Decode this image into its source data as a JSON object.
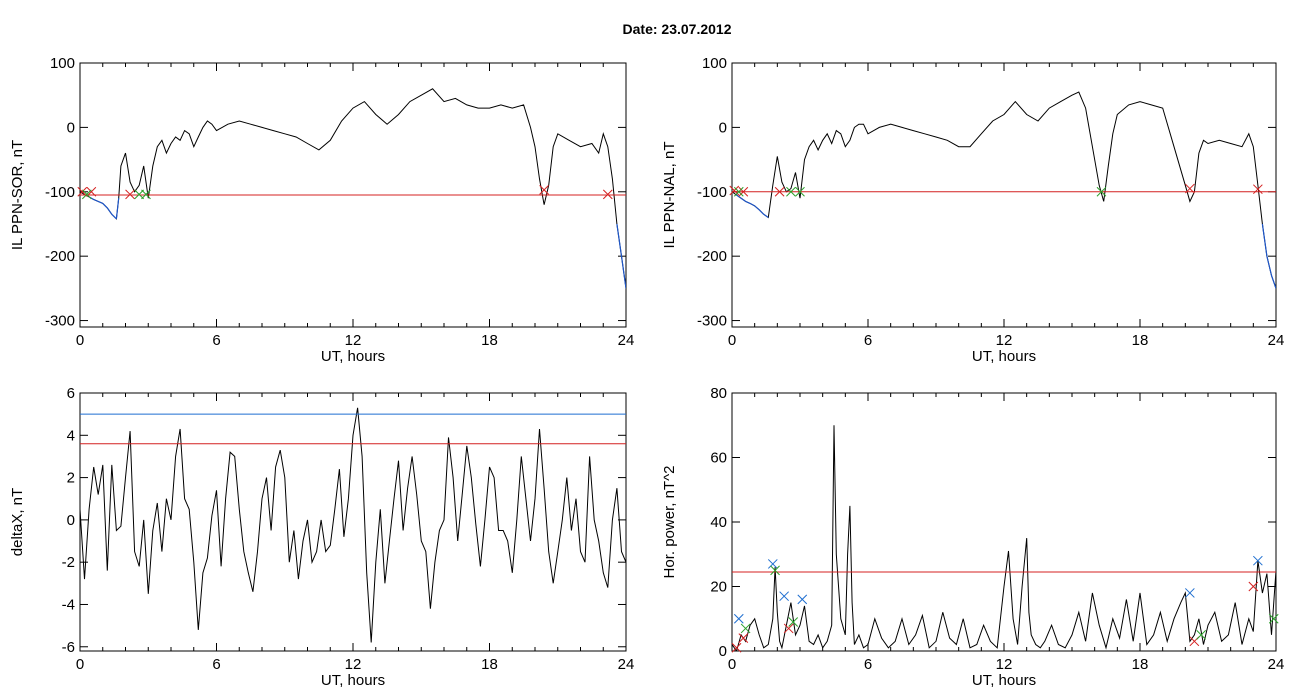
{
  "title": "Date:  23.07.2012",
  "colors": {
    "series": "#000000",
    "below": "#1e56c8",
    "threshold_red": "#d42020",
    "threshold_blue": "#1e6ed0",
    "marker_red": "#d42020",
    "marker_green": "#2aa02a",
    "marker_blue": "#1e6ed0"
  },
  "chart_data": [
    {
      "type": "line",
      "ylabel": "IL PPN-SOR, nT",
      "xlabel": "UT, hours",
      "xlim": [
        0,
        24
      ],
      "ylim": [
        -310,
        100
      ],
      "xticks": [
        0,
        6,
        12,
        18,
        24
      ],
      "yticks": [
        -300,
        -200,
        -100,
        0,
        100
      ],
      "threshold": -105,
      "series": [
        {
          "x": [
            0,
            0.2,
            0.4,
            0.6,
            0.8,
            1.0,
            1.2,
            1.4,
            1.6,
            1.7,
            1.8,
            2.0,
            2.2,
            2.4,
            2.6,
            2.8,
            3.0,
            3.2,
            3.4,
            3.6,
            3.8,
            4.0,
            4.2,
            4.4,
            4.6,
            4.8,
            5.0,
            5.2,
            5.4,
            5.6,
            5.8,
            6.0,
            6.5,
            7.0,
            7.5,
            8.0,
            8.5,
            9.0,
            9.5,
            10.0,
            10.5,
            11.0,
            11.5,
            12.0,
            12.5,
            13.0,
            13.5,
            14.0,
            14.5,
            15.0,
            15.5,
            16.0,
            16.5,
            17.0,
            17.5,
            18.0,
            18.5,
            19.0,
            19.5,
            19.8,
            20.0,
            20.2,
            20.4,
            20.6,
            20.8,
            21.0,
            21.5,
            22.0,
            22.5,
            22.8,
            23.0,
            23.2,
            23.4,
            23.6,
            23.8,
            24.0
          ],
          "y": [
            -100,
            -104,
            -108,
            -112,
            -115,
            -118,
            -125,
            -135,
            -142,
            -110,
            -60,
            -40,
            -85,
            -100,
            -90,
            -60,
            -110,
            -60,
            -30,
            -20,
            -40,
            -25,
            -15,
            -20,
            -5,
            -10,
            -30,
            -15,
            0,
            10,
            5,
            -5,
            5,
            10,
            5,
            0,
            -5,
            -10,
            -15,
            -25,
            -35,
            -20,
            10,
            30,
            40,
            20,
            5,
            20,
            40,
            50,
            60,
            40,
            45,
            35,
            30,
            30,
            35,
            30,
            35,
            0,
            -30,
            -80,
            -120,
            -90,
            -30,
            -10,
            -20,
            -30,
            -25,
            -40,
            -10,
            -30,
            -80,
            -150,
            -200,
            -250
          ]
        }
      ],
      "markers": [
        {
          "x": 0.1,
          "y": -100,
          "color": "red"
        },
        {
          "x": 0.5,
          "y": -100,
          "color": "red"
        },
        {
          "x": 0.3,
          "y": -104,
          "color": "green"
        },
        {
          "x": 2.2,
          "y": -104,
          "color": "red"
        },
        {
          "x": 2.6,
          "y": -104,
          "color": "green"
        },
        {
          "x": 2.9,
          "y": -104,
          "color": "green"
        },
        {
          "x": 20.4,
          "y": -97,
          "color": "red"
        },
        {
          "x": 23.2,
          "y": -104,
          "color": "red"
        }
      ]
    },
    {
      "type": "line",
      "ylabel": "IL PPN-NAL, nT",
      "xlabel": "UT, hours",
      "xlim": [
        0,
        24
      ],
      "ylim": [
        -310,
        100
      ],
      "xticks": [
        0,
        6,
        12,
        18,
        24
      ],
      "yticks": [
        -300,
        -200,
        -100,
        0,
        100
      ],
      "threshold": -100,
      "series": [
        {
          "x": [
            0,
            0.2,
            0.4,
            0.6,
            0.8,
            1.0,
            1.2,
            1.4,
            1.6,
            1.8,
            2.0,
            2.2,
            2.4,
            2.6,
            2.8,
            3.0,
            3.2,
            3.4,
            3.6,
            3.8,
            4.0,
            4.2,
            4.4,
            4.6,
            4.8,
            5.0,
            5.2,
            5.4,
            5.6,
            5.8,
            6.0,
            6.5,
            7.0,
            7.5,
            8.0,
            8.5,
            9.0,
            9.5,
            10.0,
            10.5,
            11.0,
            11.5,
            12.0,
            12.5,
            13.0,
            13.5,
            14.0,
            14.5,
            15.0,
            15.3,
            15.6,
            15.9,
            16.2,
            16.4,
            16.6,
            16.8,
            17.0,
            17.5,
            18.0,
            18.5,
            19.0,
            19.5,
            20.0,
            20.2,
            20.4,
            20.6,
            20.8,
            21.0,
            21.5,
            22.0,
            22.5,
            22.8,
            23.0,
            23.2,
            23.4,
            23.6,
            23.8,
            24.0
          ],
          "y": [
            -100,
            -105,
            -110,
            -115,
            -118,
            -122,
            -128,
            -135,
            -140,
            -90,
            -45,
            -85,
            -100,
            -95,
            -70,
            -110,
            -50,
            -30,
            -20,
            -35,
            -20,
            -10,
            -25,
            -5,
            -10,
            -30,
            -20,
            0,
            5,
            5,
            -10,
            0,
            5,
            0,
            -5,
            -10,
            -15,
            -20,
            -30,
            -30,
            -10,
            10,
            20,
            40,
            20,
            10,
            30,
            40,
            50,
            55,
            30,
            -30,
            -90,
            -115,
            -60,
            -10,
            20,
            35,
            40,
            35,
            30,
            -30,
            -90,
            -115,
            -100,
            -40,
            -20,
            -25,
            -20,
            -25,
            -30,
            -10,
            -30,
            -90,
            -150,
            -200,
            -230,
            -250
          ]
        }
      ],
      "markers": [
        {
          "x": 0.1,
          "y": -98,
          "color": "red"
        },
        {
          "x": 0.5,
          "y": -100,
          "color": "red"
        },
        {
          "x": 0.3,
          "y": -100,
          "color": "green"
        },
        {
          "x": 2.1,
          "y": -100,
          "color": "red"
        },
        {
          "x": 2.6,
          "y": -100,
          "color": "green"
        },
        {
          "x": 3.0,
          "y": -100,
          "color": "green"
        },
        {
          "x": 16.3,
          "y": -100,
          "color": "green"
        },
        {
          "x": 20.2,
          "y": -95,
          "color": "red"
        },
        {
          "x": 23.2,
          "y": -96,
          "color": "red"
        }
      ]
    },
    {
      "type": "line",
      "ylabel": "deltaX, nT",
      "xlabel": "UT, hours",
      "xlim": [
        0,
        24
      ],
      "ylim": [
        -6.2,
        6
      ],
      "xticks": [
        0,
        6,
        12,
        18,
        24
      ],
      "yticks": [
        -6,
        -4,
        -2,
        0,
        2,
        4,
        6
      ],
      "thresholds": [
        {
          "value": 5.0,
          "color": "blue"
        },
        {
          "value": 3.6,
          "color": "red"
        }
      ],
      "series": [
        {
          "x": [
            0,
            0.2,
            0.4,
            0.6,
            0.8,
            1.0,
            1.2,
            1.4,
            1.6,
            1.8,
            2.0,
            2.2,
            2.4,
            2.6,
            2.8,
            3.0,
            3.2,
            3.4,
            3.6,
            3.8,
            4.0,
            4.2,
            4.4,
            4.6,
            4.8,
            5.0,
            5.2,
            5.4,
            5.6,
            5.8,
            6.0,
            6.2,
            6.4,
            6.6,
            6.8,
            7.0,
            7.2,
            7.4,
            7.6,
            7.8,
            8.0,
            8.2,
            8.4,
            8.6,
            8.8,
            9.0,
            9.2,
            9.4,
            9.6,
            9.8,
            10.0,
            10.2,
            10.4,
            10.6,
            10.8,
            11.0,
            11.2,
            11.4,
            11.6,
            11.8,
            12.0,
            12.2,
            12.4,
            12.6,
            12.8,
            13.0,
            13.2,
            13.4,
            13.6,
            13.8,
            14.0,
            14.2,
            14.4,
            14.6,
            14.8,
            15.0,
            15.2,
            15.4,
            15.6,
            15.8,
            16.0,
            16.2,
            16.4,
            16.6,
            16.8,
            17.0,
            17.2,
            17.4,
            17.6,
            17.8,
            18.0,
            18.2,
            18.4,
            18.6,
            18.8,
            19.0,
            19.2,
            19.4,
            19.6,
            19.8,
            20.0,
            20.2,
            20.4,
            20.6,
            20.8,
            21.0,
            21.2,
            21.4,
            21.6,
            21.8,
            22.0,
            22.2,
            22.4,
            22.6,
            22.8,
            23.0,
            23.2,
            23.4,
            23.6,
            23.8,
            24.0
          ],
          "y": [
            0.5,
            -2.8,
            0.5,
            2.5,
            1.2,
            2.6,
            -2.4,
            2.6,
            -0.5,
            -0.3,
            2.0,
            4.2,
            -1.5,
            -2.2,
            0.0,
            -3.5,
            -0.5,
            0.8,
            -1.5,
            1.0,
            0.0,
            3.0,
            4.3,
            1.0,
            0.5,
            -2.0,
            -5.2,
            -2.5,
            -1.8,
            0.2,
            1.4,
            -2.2,
            1.0,
            3.2,
            3.0,
            0.5,
            -1.5,
            -2.5,
            -3.4,
            -1.5,
            1.0,
            2.0,
            -0.5,
            2.5,
            3.3,
            2.0,
            -2.0,
            -0.5,
            -2.8,
            -1.0,
            0.0,
            -2.0,
            -1.5,
            0.0,
            -1.5,
            -1.2,
            0.5,
            2.4,
            -0.8,
            1.0,
            4.0,
            5.3,
            3.0,
            -2.5,
            -5.8,
            -2.0,
            0.5,
            -3.0,
            -1.0,
            1.0,
            2.8,
            -0.5,
            1.5,
            3.0,
            1.2,
            -1.0,
            -1.5,
            -4.2,
            -2.0,
            -0.5,
            0.0,
            3.9,
            2.0,
            -1.0,
            1.2,
            3.5,
            2.0,
            -0.2,
            -2.2,
            0.0,
            2.5,
            2.0,
            -0.5,
            -0.5,
            -1.0,
            -2.5,
            0.0,
            3.0,
            1.0,
            -1.0,
            1.0,
            4.3,
            1.5,
            -1.5,
            -3.0,
            -1.5,
            0.0,
            2.0,
            -0.5,
            1.0,
            -1.5,
            -2.0,
            3.0,
            0.0,
            -1.0,
            -2.5,
            -3.2,
            0.0,
            1.5,
            -1.5,
            -2.0
          ]
        }
      ]
    },
    {
      "type": "line",
      "ylabel": "Hor. power, nT^2",
      "xlabel": "UT, hours",
      "xlim": [
        0,
        24
      ],
      "ylim": [
        0,
        80
      ],
      "xticks": [
        0,
        6,
        12,
        18,
        24
      ],
      "yticks": [
        0,
        20,
        40,
        60,
        80
      ],
      "threshold": 24.5,
      "series": [
        {
          "x": [
            0,
            0.2,
            0.4,
            0.6,
            0.8,
            1.0,
            1.2,
            1.4,
            1.6,
            1.8,
            1.9,
            2.0,
            2.1,
            2.2,
            2.4,
            2.6,
            2.8,
            3.0,
            3.2,
            3.4,
            3.6,
            3.8,
            4.0,
            4.2,
            4.4,
            4.5,
            4.6,
            4.8,
            5.0,
            5.1,
            5.2,
            5.3,
            5.4,
            5.6,
            5.8,
            6.0,
            6.3,
            6.6,
            6.9,
            7.2,
            7.5,
            7.8,
            8.1,
            8.4,
            8.7,
            9.0,
            9.3,
            9.6,
            9.9,
            10.2,
            10.5,
            10.8,
            11.1,
            11.4,
            11.7,
            12.0,
            12.2,
            12.4,
            12.6,
            12.8,
            13.0,
            13.1,
            13.2,
            13.4,
            13.6,
            13.8,
            14.1,
            14.4,
            14.7,
            15.0,
            15.3,
            15.6,
            15.9,
            16.2,
            16.5,
            16.8,
            17.1,
            17.4,
            17.7,
            18.0,
            18.3,
            18.6,
            18.9,
            19.2,
            19.5,
            19.8,
            20.0,
            20.2,
            20.4,
            20.6,
            20.8,
            21.0,
            21.3,
            21.6,
            21.9,
            22.2,
            22.5,
            22.8,
            23.0,
            23.2,
            23.4,
            23.6,
            23.8,
            24.0
          ],
          "y": [
            2,
            0,
            5,
            3,
            8,
            10,
            5,
            1,
            2,
            10,
            26,
            12,
            3,
            1,
            8,
            15,
            5,
            8,
            14,
            3,
            2,
            5,
            1,
            3,
            8,
            70,
            30,
            10,
            5,
            30,
            45,
            15,
            2,
            5,
            1,
            2,
            10,
            4,
            1,
            3,
            10,
            2,
            5,
            11,
            1,
            3,
            12,
            4,
            2,
            10,
            1,
            2,
            8,
            3,
            1,
            20,
            31,
            10,
            2,
            20,
            35,
            12,
            5,
            2,
            1,
            3,
            8,
            2,
            1,
            5,
            12,
            3,
            18,
            8,
            1,
            10,
            4,
            16,
            3,
            18,
            2,
            5,
            12,
            3,
            10,
            15,
            18,
            3,
            5,
            10,
            2,
            8,
            12,
            3,
            5,
            15,
            2,
            10,
            6,
            28,
            18,
            24,
            5,
            25
          ]
        }
      ],
      "markers": [
        {
          "x": 0.2,
          "y": 1,
          "color": "red"
        },
        {
          "x": 0.3,
          "y": 10,
          "color": "blue"
        },
        {
          "x": 0.5,
          "y": 4,
          "color": "red"
        },
        {
          "x": 0.6,
          "y": 7,
          "color": "green"
        },
        {
          "x": 1.8,
          "y": 27,
          "color": "blue"
        },
        {
          "x": 1.9,
          "y": 25,
          "color": "green"
        },
        {
          "x": 2.3,
          "y": 17,
          "color": "blue"
        },
        {
          "x": 2.5,
          "y": 7,
          "color": "red"
        },
        {
          "x": 2.7,
          "y": 9,
          "color": "green"
        },
        {
          "x": 3.1,
          "y": 16,
          "color": "blue"
        },
        {
          "x": 20.2,
          "y": 18,
          "color": "blue"
        },
        {
          "x": 20.4,
          "y": 3,
          "color": "red"
        },
        {
          "x": 20.7,
          "y": 5,
          "color": "green"
        },
        {
          "x": 23.0,
          "y": 20,
          "color": "red"
        },
        {
          "x": 23.2,
          "y": 28,
          "color": "blue"
        },
        {
          "x": 23.9,
          "y": 10,
          "color": "green"
        }
      ]
    }
  ]
}
